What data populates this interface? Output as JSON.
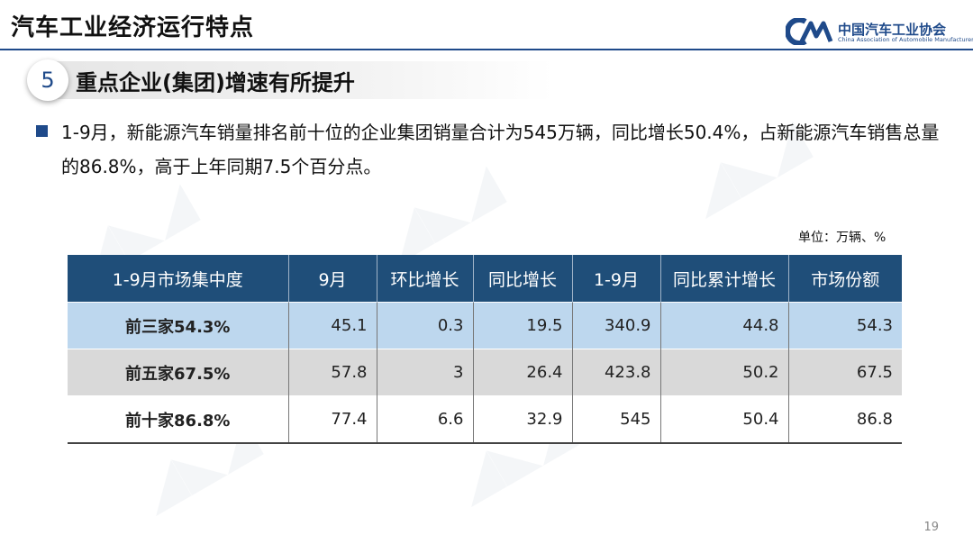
{
  "header": {
    "title": "汽车工业经济运行特点",
    "logo_cn": "中国汽车工业协会",
    "logo_en": "China Association of Automobile Manufacturers"
  },
  "section": {
    "number": "5",
    "title": "重点企业(集团)增速有所提升"
  },
  "paragraph": "1-9月，新能源汽车销量排名前十位的企业集团销量合计为545万辆，同比增长50.4%，占新能源汽车销售总量的86.8%，高于上年同期7.5个百分点。",
  "unit": "单位：万辆、%",
  "table": {
    "headers": [
      "1-9月市场集中度",
      "9月",
      "环比增长",
      "同比增长",
      "1-9月",
      "同比累计增长",
      "市场份额"
    ],
    "rows": [
      [
        "前三家54.3%",
        "45.1",
        "0.3",
        "19.5",
        "340.9",
        "44.8",
        "54.3"
      ],
      [
        "前五家67.5%",
        "57.8",
        "3",
        "26.4",
        "423.8",
        "50.2",
        "67.5"
      ],
      [
        "前十家86.8%",
        "77.4",
        "6.6",
        "32.9",
        "545",
        "50.4",
        "86.8"
      ]
    ]
  },
  "page_number": "19",
  "colors": {
    "brand_blue": "#1f4a8a",
    "header_fill": "#1f4e79",
    "row1_fill": "#bdd7ee",
    "row2_fill": "#d9d9d9"
  }
}
